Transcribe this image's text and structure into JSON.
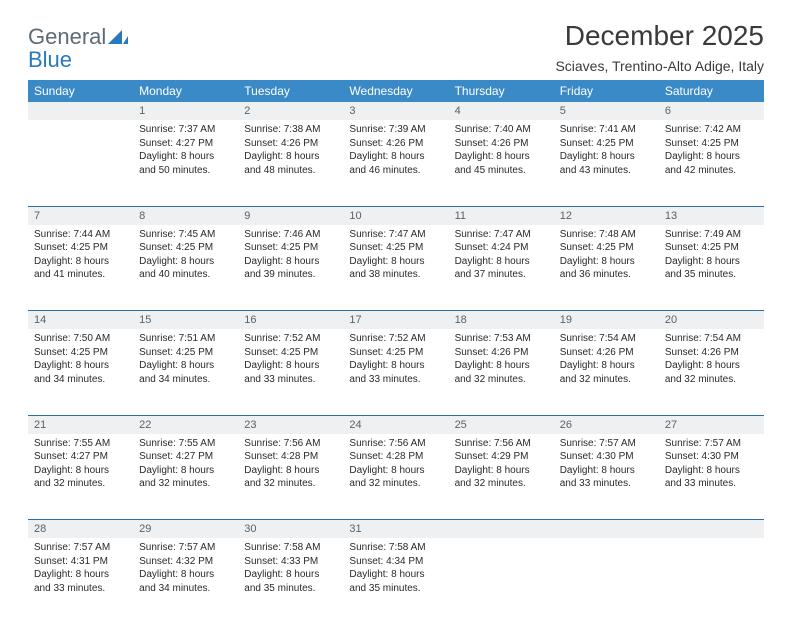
{
  "logo": {
    "word1": "General",
    "word2": "Blue"
  },
  "colors": {
    "header_bg": "#3a8ac8",
    "header_text": "#ffffff",
    "daynum_bg": "#eef0f1",
    "daynum_text": "#5a6268",
    "row_divider": "#2a6fa8",
    "text": "#2a2a2a",
    "logo_gray": "#5f6b74",
    "logo_blue": "#2a78c0"
  },
  "title": "December 2025",
  "location": "Sciaves, Trentino-Alto Adige, Italy",
  "day_headers": [
    "Sunday",
    "Monday",
    "Tuesday",
    "Wednesday",
    "Thursday",
    "Friday",
    "Saturday"
  ],
  "weeks": [
    [
      {
        "n": "",
        "lines": []
      },
      {
        "n": "1",
        "lines": [
          "Sunrise: 7:37 AM",
          "Sunset: 4:27 PM",
          "Daylight: 8 hours",
          "and 50 minutes."
        ]
      },
      {
        "n": "2",
        "lines": [
          "Sunrise: 7:38 AM",
          "Sunset: 4:26 PM",
          "Daylight: 8 hours",
          "and 48 minutes."
        ]
      },
      {
        "n": "3",
        "lines": [
          "Sunrise: 7:39 AM",
          "Sunset: 4:26 PM",
          "Daylight: 8 hours",
          "and 46 minutes."
        ]
      },
      {
        "n": "4",
        "lines": [
          "Sunrise: 7:40 AM",
          "Sunset: 4:26 PM",
          "Daylight: 8 hours",
          "and 45 minutes."
        ]
      },
      {
        "n": "5",
        "lines": [
          "Sunrise: 7:41 AM",
          "Sunset: 4:25 PM",
          "Daylight: 8 hours",
          "and 43 minutes."
        ]
      },
      {
        "n": "6",
        "lines": [
          "Sunrise: 7:42 AM",
          "Sunset: 4:25 PM",
          "Daylight: 8 hours",
          "and 42 minutes."
        ]
      }
    ],
    [
      {
        "n": "7",
        "lines": [
          "Sunrise: 7:44 AM",
          "Sunset: 4:25 PM",
          "Daylight: 8 hours",
          "and 41 minutes."
        ]
      },
      {
        "n": "8",
        "lines": [
          "Sunrise: 7:45 AM",
          "Sunset: 4:25 PM",
          "Daylight: 8 hours",
          "and 40 minutes."
        ]
      },
      {
        "n": "9",
        "lines": [
          "Sunrise: 7:46 AM",
          "Sunset: 4:25 PM",
          "Daylight: 8 hours",
          "and 39 minutes."
        ]
      },
      {
        "n": "10",
        "lines": [
          "Sunrise: 7:47 AM",
          "Sunset: 4:25 PM",
          "Daylight: 8 hours",
          "and 38 minutes."
        ]
      },
      {
        "n": "11",
        "lines": [
          "Sunrise: 7:47 AM",
          "Sunset: 4:24 PM",
          "Daylight: 8 hours",
          "and 37 minutes."
        ]
      },
      {
        "n": "12",
        "lines": [
          "Sunrise: 7:48 AM",
          "Sunset: 4:25 PM",
          "Daylight: 8 hours",
          "and 36 minutes."
        ]
      },
      {
        "n": "13",
        "lines": [
          "Sunrise: 7:49 AM",
          "Sunset: 4:25 PM",
          "Daylight: 8 hours",
          "and 35 minutes."
        ]
      }
    ],
    [
      {
        "n": "14",
        "lines": [
          "Sunrise: 7:50 AM",
          "Sunset: 4:25 PM",
          "Daylight: 8 hours",
          "and 34 minutes."
        ]
      },
      {
        "n": "15",
        "lines": [
          "Sunrise: 7:51 AM",
          "Sunset: 4:25 PM",
          "Daylight: 8 hours",
          "and 34 minutes."
        ]
      },
      {
        "n": "16",
        "lines": [
          "Sunrise: 7:52 AM",
          "Sunset: 4:25 PM",
          "Daylight: 8 hours",
          "and 33 minutes."
        ]
      },
      {
        "n": "17",
        "lines": [
          "Sunrise: 7:52 AM",
          "Sunset: 4:25 PM",
          "Daylight: 8 hours",
          "and 33 minutes."
        ]
      },
      {
        "n": "18",
        "lines": [
          "Sunrise: 7:53 AM",
          "Sunset: 4:26 PM",
          "Daylight: 8 hours",
          "and 32 minutes."
        ]
      },
      {
        "n": "19",
        "lines": [
          "Sunrise: 7:54 AM",
          "Sunset: 4:26 PM",
          "Daylight: 8 hours",
          "and 32 minutes."
        ]
      },
      {
        "n": "20",
        "lines": [
          "Sunrise: 7:54 AM",
          "Sunset: 4:26 PM",
          "Daylight: 8 hours",
          "and 32 minutes."
        ]
      }
    ],
    [
      {
        "n": "21",
        "lines": [
          "Sunrise: 7:55 AM",
          "Sunset: 4:27 PM",
          "Daylight: 8 hours",
          "and 32 minutes."
        ]
      },
      {
        "n": "22",
        "lines": [
          "Sunrise: 7:55 AM",
          "Sunset: 4:27 PM",
          "Daylight: 8 hours",
          "and 32 minutes."
        ]
      },
      {
        "n": "23",
        "lines": [
          "Sunrise: 7:56 AM",
          "Sunset: 4:28 PM",
          "Daylight: 8 hours",
          "and 32 minutes."
        ]
      },
      {
        "n": "24",
        "lines": [
          "Sunrise: 7:56 AM",
          "Sunset: 4:28 PM",
          "Daylight: 8 hours",
          "and 32 minutes."
        ]
      },
      {
        "n": "25",
        "lines": [
          "Sunrise: 7:56 AM",
          "Sunset: 4:29 PM",
          "Daylight: 8 hours",
          "and 32 minutes."
        ]
      },
      {
        "n": "26",
        "lines": [
          "Sunrise: 7:57 AM",
          "Sunset: 4:30 PM",
          "Daylight: 8 hours",
          "and 33 minutes."
        ]
      },
      {
        "n": "27",
        "lines": [
          "Sunrise: 7:57 AM",
          "Sunset: 4:30 PM",
          "Daylight: 8 hours",
          "and 33 minutes."
        ]
      }
    ],
    [
      {
        "n": "28",
        "lines": [
          "Sunrise: 7:57 AM",
          "Sunset: 4:31 PM",
          "Daylight: 8 hours",
          "and 33 minutes."
        ]
      },
      {
        "n": "29",
        "lines": [
          "Sunrise: 7:57 AM",
          "Sunset: 4:32 PM",
          "Daylight: 8 hours",
          "and 34 minutes."
        ]
      },
      {
        "n": "30",
        "lines": [
          "Sunrise: 7:58 AM",
          "Sunset: 4:33 PM",
          "Daylight: 8 hours",
          "and 35 minutes."
        ]
      },
      {
        "n": "31",
        "lines": [
          "Sunrise: 7:58 AM",
          "Sunset: 4:34 PM",
          "Daylight: 8 hours",
          "and 35 minutes."
        ]
      },
      {
        "n": "",
        "lines": []
      },
      {
        "n": "",
        "lines": []
      },
      {
        "n": "",
        "lines": []
      }
    ]
  ]
}
